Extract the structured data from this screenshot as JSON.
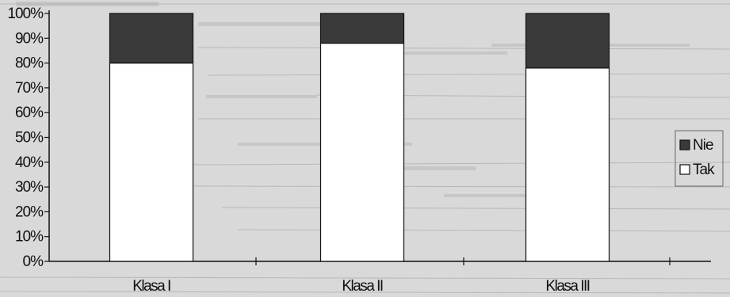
{
  "chart_data": {
    "type": "bar",
    "stacked": true,
    "percent": true,
    "categories": [
      "Klasa I",
      "Klasa II",
      "Klasa III"
    ],
    "series": [
      {
        "name": "Tak",
        "values": [
          80,
          88,
          78
        ],
        "color": "#ffffff"
      },
      {
        "name": "Nie",
        "values": [
          20,
          12,
          22
        ],
        "color": "#3a3a3a"
      }
    ],
    "title": "",
    "xlabel": "",
    "ylabel": "",
    "ylim": [
      0,
      100
    ],
    "yticks": [
      "0%",
      "10%",
      "20%",
      "30%",
      "40%",
      "50%",
      "60%",
      "70%",
      "80%",
      "90%",
      "100%"
    ],
    "legend": {
      "position": "right",
      "order": [
        "Nie",
        "Tak"
      ]
    },
    "grid": false,
    "background": "#d9d9d9"
  }
}
